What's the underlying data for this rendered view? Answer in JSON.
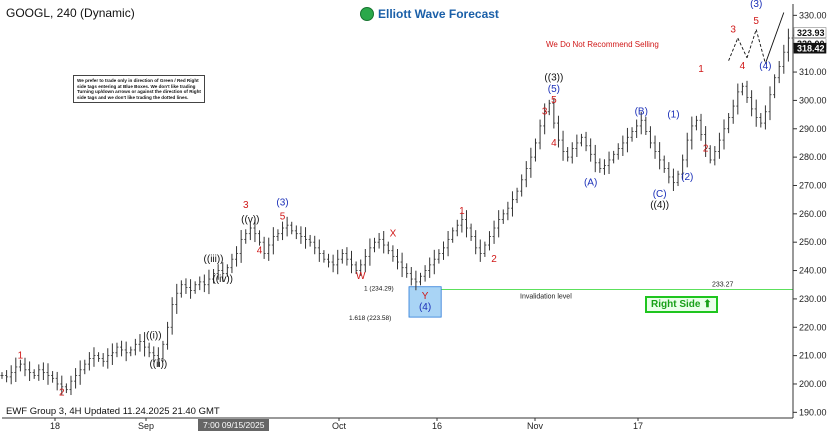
{
  "header": {
    "title": "GOOGL, 240 (Dynamic)",
    "brand": "Elliott Wave Forecast"
  },
  "disclaimer": "We prefer to trade only in direction of Green / Red Right side tags entering at Blue Boxes. We don't like trading Turning up/down arrows or against the direction of Right side tags and we don't like trading the dotted lines.",
  "warning": "We Do Not Recommend Selling",
  "footer": "EWF Group 3, 4H Updated 11.24.2025 21.40 GMT",
  "right_side_tag": "Right Side",
  "date_tooltip": "7:00 09/15/2025",
  "colors": {
    "red": "#d01818",
    "blue": "#1a2fb8",
    "black": "#111111",
    "green": "#1fc51f",
    "box": "#a9d4f5"
  },
  "chart_data": {
    "type": "line",
    "ylim": [
      188,
      334
    ],
    "yticks": [
      190,
      200,
      210,
      220,
      230,
      240,
      250,
      260,
      270,
      280,
      290,
      300,
      310,
      320,
      330
    ],
    "xticks": [
      "18",
      "Sep",
      "Oct",
      "16",
      "Nov",
      "17"
    ],
    "price_labels": [
      "323.93",
      "320.00",
      "318.42"
    ],
    "invalidation": {
      "value": 233.27,
      "label": "Invalidation level",
      "price_label": "233.27"
    },
    "blue_box": {
      "top": 234.29,
      "bottom": 223.58,
      "labels": [
        "1 (234.29)",
        "1.618 (223.58)"
      ]
    },
    "series": [
      {
        "values": [
          203,
          202.5,
          204,
          206,
          207,
          205,
          204,
          203,
          205,
          204,
          203,
          202,
          200,
          199,
          198,
          201,
          203,
          205,
          207,
          209,
          210,
          209,
          208,
          210,
          211,
          213,
          212,
          211,
          212,
          214,
          215,
          213,
          211,
          210,
          209,
          214,
          220,
          228,
          232,
          235,
          234,
          233,
          235,
          236,
          235,
          237,
          239,
          240,
          239,
          241,
          244,
          246,
          251,
          253,
          255,
          253,
          250,
          246,
          249,
          252,
          253,
          255,
          256,
          254,
          253,
          252,
          251,
          250,
          248,
          246,
          244,
          243,
          242,
          244,
          246,
          244,
          242,
          240,
          242,
          245,
          248,
          250,
          251,
          249,
          247,
          245,
          243,
          241,
          239,
          237,
          236,
          238,
          240,
          242,
          244,
          246,
          248,
          251,
          254,
          256,
          258,
          255,
          252,
          248,
          246,
          249,
          252,
          255,
          258,
          260,
          262,
          265,
          268,
          272,
          276,
          280,
          285,
          291,
          296,
          299,
          292,
          286,
          282,
          280,
          283,
          285,
          287,
          284,
          281,
          278,
          276,
          277,
          279,
          281,
          283,
          285,
          287,
          289,
          291,
          293,
          289,
          285,
          282,
          279,
          276,
          273,
          271,
          274,
          279,
          286,
          291,
          293,
          288,
          283,
          279,
          282,
          286,
          290,
          294,
          298,
          303,
          305,
          301,
          297,
          294,
          292,
          296,
          302,
          308,
          312,
          317,
          322,
          323
        ]
      }
    ],
    "wave_labels": [
      {
        "text": "1",
        "x": 4,
        "y": 209,
        "color": "red"
      },
      {
        "text": "2",
        "x": 13,
        "y": 196,
        "color": "red"
      },
      {
        "text": "((i))",
        "x": 33,
        "y": 216,
        "color": "black"
      },
      {
        "text": "((ii))",
        "x": 34,
        "y": 206,
        "color": "black"
      },
      {
        "text": "((iii))",
        "x": 46,
        "y": 243,
        "color": "black"
      },
      {
        "text": "((iv))",
        "x": 48,
        "y": 236,
        "color": "black"
      },
      {
        "text": "3",
        "x": 53,
        "y": 262,
        "color": "red"
      },
      {
        "text": "((v))",
        "x": 54,
        "y": 257,
        "color": "black"
      },
      {
        "text": "4",
        "x": 56,
        "y": 246,
        "color": "red"
      },
      {
        "text": "(3)",
        "x": 61,
        "y": 263,
        "color": "blue"
      },
      {
        "text": "5",
        "x": 61,
        "y": 258,
        "color": "red"
      },
      {
        "text": "W",
        "x": 78,
        "y": 237,
        "color": "red"
      },
      {
        "text": "X",
        "x": 85,
        "y": 252,
        "color": "red"
      },
      {
        "text": "Y",
        "x": 92,
        "y": 230,
        "color": "red"
      },
      {
        "text": "(4)",
        "x": 92,
        "y": 226,
        "color": "blue"
      },
      {
        "text": "1",
        "x": 100,
        "y": 260,
        "color": "red"
      },
      {
        "text": "2",
        "x": 107,
        "y": 243,
        "color": "red"
      },
      {
        "text": "((3))",
        "x": 120,
        "y": 307,
        "color": "black"
      },
      {
        "text": "(5)",
        "x": 120,
        "y": 303,
        "color": "blue"
      },
      {
        "text": "5",
        "x": 120,
        "y": 299,
        "color": "red"
      },
      {
        "text": "3",
        "x": 118,
        "y": 295,
        "color": "red"
      },
      {
        "text": "4",
        "x": 120,
        "y": 284,
        "color": "red"
      },
      {
        "text": "(A)",
        "x": 128,
        "y": 270,
        "color": "blue"
      },
      {
        "text": "(B)",
        "x": 139,
        "y": 295,
        "color": "blue"
      },
      {
        "text": "(C)",
        "x": 143,
        "y": 266,
        "color": "blue"
      },
      {
        "text": "((4))",
        "x": 143,
        "y": 262,
        "color": "black"
      },
      {
        "text": "(1)",
        "x": 146,
        "y": 294,
        "color": "blue"
      },
      {
        "text": "(2)",
        "x": 149,
        "y": 272,
        "color": "blue"
      },
      {
        "text": "1",
        "x": 152,
        "y": 310,
        "color": "red"
      },
      {
        "text": "2",
        "x": 153,
        "y": 282,
        "color": "red"
      },
      {
        "text": "3",
        "x": 159,
        "y": 324,
        "color": "red"
      },
      {
        "text": "4",
        "x": 161,
        "y": 311,
        "color": "red"
      },
      {
        "text": "(3)",
        "x": 164,
        "y": 333,
        "color": "blue"
      },
      {
        "text": "5",
        "x": 164,
        "y": 327,
        "color": "red"
      },
      {
        "text": "(4)",
        "x": 166,
        "y": 311,
        "color": "blue"
      }
    ],
    "projection": [
      {
        "x": 158,
        "y": 314
      },
      {
        "x": 160,
        "y": 322
      },
      {
        "x": 162,
        "y": 315
      },
      {
        "x": 164,
        "y": 325
      },
      {
        "x": 166,
        "y": 313
      },
      {
        "x": 170,
        "y": 331
      }
    ],
    "projection_solid_from": 4
  }
}
